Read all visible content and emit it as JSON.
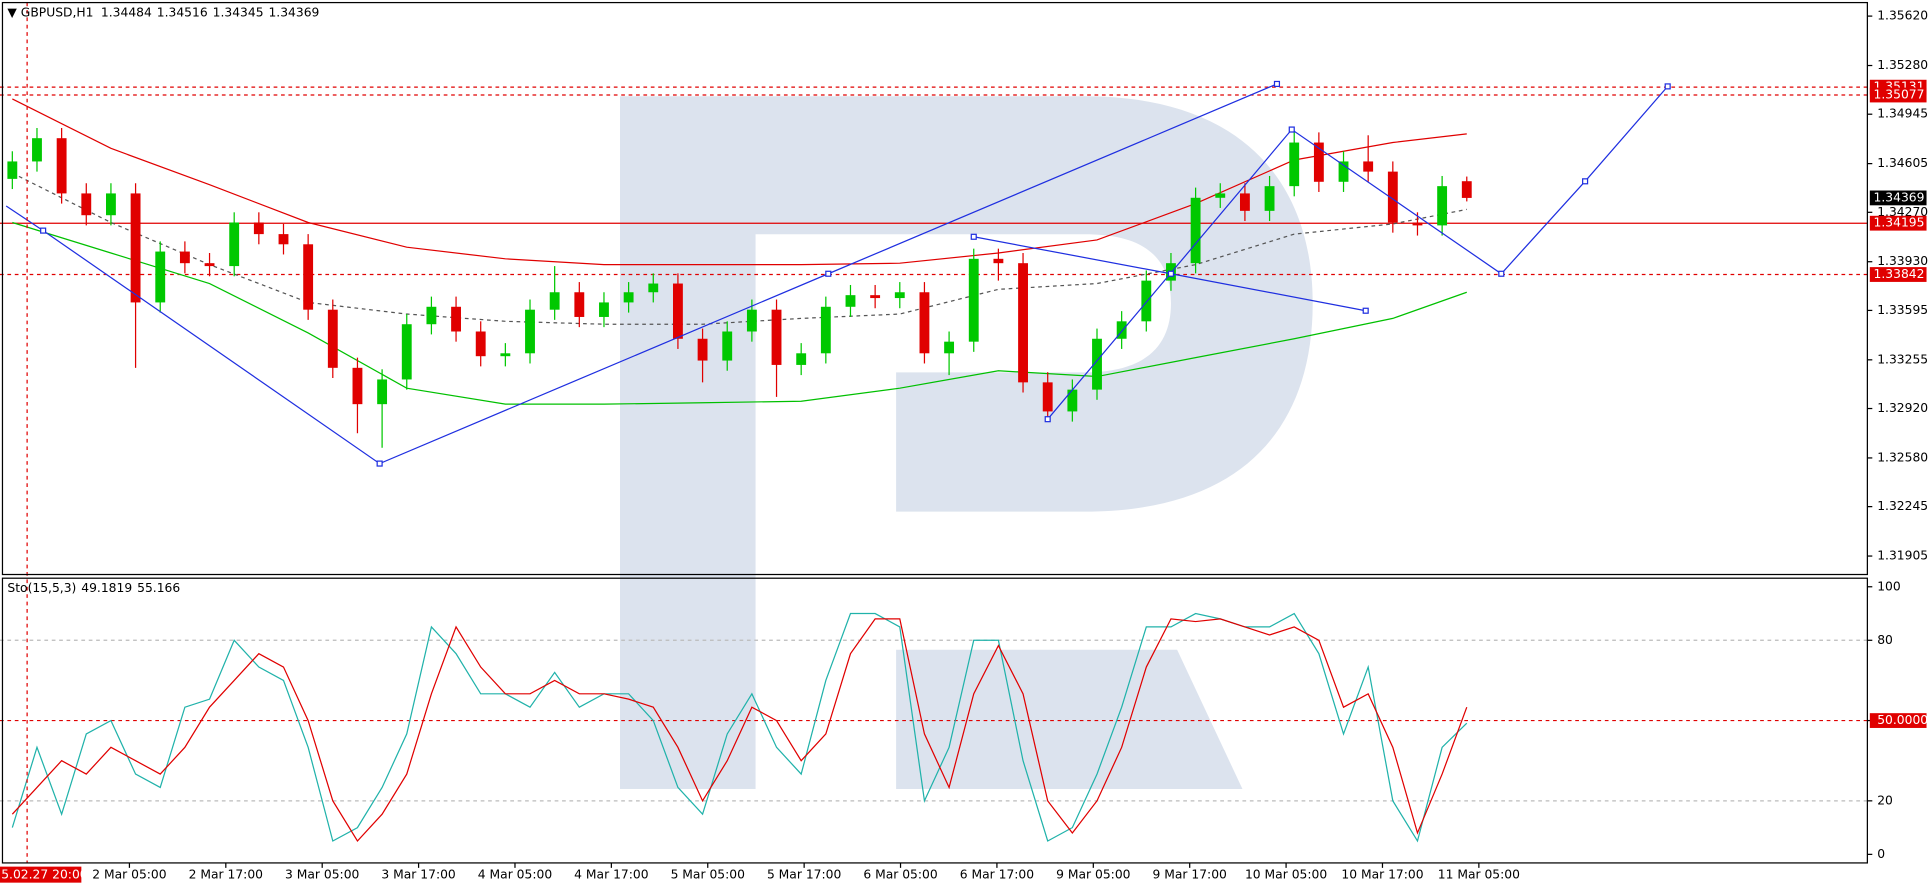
{
  "chart_data": [
    {
      "type": "candlestick",
      "title": "GBPUSD,H1",
      "header_values": [
        1.34484,
        1.34516,
        1.34345,
        1.34369
      ],
      "open": [
        1.345,
        1.3462,
        1.3478,
        1.344,
        1.3425,
        1.344,
        1.3365,
        1.34,
        1.3392,
        1.339,
        1.342,
        1.3412,
        1.3405,
        1.336,
        1.332,
        1.3295,
        1.3312,
        1.335,
        1.3362,
        1.3345,
        1.3328,
        1.333,
        1.336,
        1.3372,
        1.3355,
        1.3365,
        1.3372,
        1.3378,
        1.334,
        1.3325,
        1.3345,
        1.336,
        1.3322,
        1.333,
        1.3362,
        1.337,
        1.3368,
        1.3372,
        1.333,
        1.3338,
        1.3395,
        1.3392,
        1.331,
        1.329,
        1.3305,
        1.334,
        1.3352,
        1.338,
        1.3392,
        1.3437,
        1.344,
        1.3428,
        1.3445,
        1.3475,
        1.3448,
        1.3462,
        1.3455,
        1.342,
        1.3418,
        1.34484
      ],
      "high": [
        1.3469,
        1.3485,
        1.3485,
        1.3447,
        1.3447,
        1.3447,
        1.3407,
        1.3407,
        1.3399,
        1.3427,
        1.3427,
        1.3419,
        1.3412,
        1.3367,
        1.3327,
        1.3319,
        1.3357,
        1.3369,
        1.3369,
        1.3352,
        1.3337,
        1.3367,
        1.339,
        1.3379,
        1.3372,
        1.3379,
        1.3385,
        1.3385,
        1.3347,
        1.3352,
        1.3367,
        1.3367,
        1.3337,
        1.3369,
        1.3377,
        1.3377,
        1.3379,
        1.3379,
        1.3345,
        1.3402,
        1.3402,
        1.3399,
        1.3317,
        1.3312,
        1.3347,
        1.3359,
        1.3387,
        1.3399,
        1.3444,
        1.3447,
        1.3447,
        1.3452,
        1.3482,
        1.3482,
        1.3469,
        1.348,
        1.3462,
        1.3427,
        1.3452,
        1.34516
      ],
      "low": [
        1.3443,
        1.3455,
        1.3433,
        1.3418,
        1.3418,
        1.332,
        1.3358,
        1.3385,
        1.3383,
        1.3383,
        1.3405,
        1.3398,
        1.3353,
        1.3313,
        1.3275,
        1.3265,
        1.3305,
        1.3343,
        1.3338,
        1.3321,
        1.3321,
        1.3323,
        1.3353,
        1.3348,
        1.3348,
        1.3358,
        1.3365,
        1.3333,
        1.331,
        1.3318,
        1.3338,
        1.33,
        1.3315,
        1.3323,
        1.3355,
        1.3361,
        1.3361,
        1.3323,
        1.3315,
        1.3331,
        1.338,
        1.3303,
        1.3285,
        1.3283,
        1.3298,
        1.3333,
        1.3345,
        1.3373,
        1.3385,
        1.343,
        1.3421,
        1.3421,
        1.3438,
        1.3441,
        1.3441,
        1.3448,
        1.3413,
        1.3411,
        1.3411,
        1.34345
      ],
      "close": [
        1.3462,
        1.3478,
        1.344,
        1.3425,
        1.344,
        1.3365,
        1.34,
        1.3392,
        1.339,
        1.342,
        1.3412,
        1.3405,
        1.336,
        1.332,
        1.3295,
        1.3312,
        1.335,
        1.3362,
        1.3345,
        1.3328,
        1.333,
        1.336,
        1.3372,
        1.3355,
        1.3365,
        1.3372,
        1.3378,
        1.334,
        1.3325,
        1.3345,
        1.336,
        1.3322,
        1.333,
        1.3362,
        1.337,
        1.3368,
        1.3372,
        1.333,
        1.3338,
        1.3395,
        1.3392,
        1.331,
        1.329,
        1.3305,
        1.334,
        1.3352,
        1.338,
        1.3392,
        1.3437,
        1.344,
        1.3428,
        1.3445,
        1.3475,
        1.3448,
        1.3462,
        1.3455,
        1.342,
        1.3418,
        1.3445,
        1.34369
      ],
      "up_color": "#00c800",
      "down_color": "#e00000",
      "ylim": [
        1.31778,
        1.35713
      ],
      "yticks": [
        {
          "value": 1.3562,
          "label": "1.35620"
        },
        {
          "value": 1.3528,
          "label": "1.35280"
        },
        1.34945,
        1.34605,
        {
          "value": 1.3427,
          "label": "1.34270"
        },
        {
          "value": 1.3393,
          "label": "1.33930"
        },
        1.33595,
        1.33255,
        {
          "value": 1.3292,
          "label": "1.32920"
        },
        {
          "value": 1.3258,
          "label": "1.32580"
        },
        1.32245,
        1.31905
      ],
      "overlays": [
        {
          "color": "#e00000",
          "style": "solid",
          "x": [
            0,
            4,
            8,
            12,
            16,
            20,
            24,
            28,
            32,
            36,
            40,
            44,
            48,
            52,
            56,
            59
          ],
          "values": [
            1.3505,
            1.3471,
            1.3446,
            1.342,
            1.3403,
            1.3395,
            1.3391,
            1.3391,
            1.3391,
            1.3392,
            1.3399,
            1.3408,
            1.3433,
            1.3463,
            1.3475,
            1.3481
          ]
        },
        {
          "color": "#00c000",
          "style": "solid",
          "x": [
            0,
            4,
            8,
            12,
            16,
            20,
            24,
            28,
            32,
            36,
            40,
            44,
            48,
            52,
            56,
            59
          ],
          "values": [
            1.342,
            1.3399,
            1.3378,
            1.3344,
            1.3306,
            1.3295,
            1.3295,
            1.3296,
            1.3297,
            1.3306,
            1.3318,
            1.3314,
            1.3327,
            1.334,
            1.3354,
            1.3372
          ]
        },
        {
          "color": "#555555",
          "style": "dashed",
          "x": [
            0,
            4,
            8,
            12,
            16,
            20,
            24,
            28,
            32,
            36,
            40,
            44,
            48,
            52,
            56,
            59
          ],
          "values": [
            1.3454,
            1.342,
            1.3391,
            1.3365,
            1.3357,
            1.3352,
            1.335,
            1.335,
            1.3354,
            1.3357,
            1.3374,
            1.3378,
            1.3391,
            1.3412,
            1.3419,
            1.3429
          ]
        }
      ],
      "levels": [
        1.35131,
        1.35077,
        1.34195,
        1.33842
      ],
      "level_styles": [
        "dashed",
        "dashed",
        "solid",
        "dashed"
      ],
      "level_color": "#e00000",
      "current_price": 1.34369,
      "cursor_label": "5.02.27 20:00",
      "time_labels": [
        "2 Mar 05:00",
        "2 Mar 17:00",
        "3 Mar 05:00",
        "3 Mar 17:00",
        "4 Mar 05:00",
        "4 Mar 17:00",
        "5 Mar 05:00",
        "5 Mar 17:00",
        "6 Mar 05:00",
        "6 Mar 17:00",
        "9 Mar 05:00",
        "9 Mar 17:00",
        "10 Mar 05:00",
        "10 Mar 17:00",
        "11 Mar 05:00"
      ]
    },
    {
      "type": "line",
      "title": "Sto(15,5,3)",
      "header_values": [
        49.1819,
        55.166
      ],
      "series": [
        {
          "color": "#20b2aa",
          "values": [
            10,
            40,
            15,
            45,
            50,
            30,
            25,
            55,
            58,
            80,
            70,
            65,
            40,
            5,
            10,
            25,
            45,
            85,
            75,
            60,
            60,
            55,
            68,
            55,
            60,
            60,
            50,
            25,
            15,
            45,
            60,
            40,
            30,
            65,
            90,
            90,
            85,
            20,
            40,
            80,
            80,
            35,
            5,
            10,
            30,
            55,
            85,
            85,
            90,
            88,
            85,
            85,
            90,
            75,
            45,
            70,
            20,
            5,
            40,
            49
          ]
        },
        {
          "color": "#e00000",
          "values": [
            15,
            25,
            35,
            30,
            40,
            35,
            30,
            40,
            55,
            65,
            75,
            70,
            50,
            20,
            5,
            15,
            30,
            60,
            85,
            70,
            60,
            60,
            65,
            60,
            60,
            58,
            55,
            40,
            20,
            35,
            55,
            50,
            35,
            45,
            75,
            88,
            88,
            45,
            25,
            60,
            78,
            60,
            20,
            8,
            20,
            40,
            70,
            88,
            87,
            88,
            85,
            82,
            85,
            80,
            55,
            60,
            40,
            8,
            30,
            55
          ]
        }
      ],
      "ylim": [
        -3.2,
        103.2
      ],
      "yticks": [
        0,
        20,
        {
          "value": 50,
          "label": "50.0000"
        },
        80,
        100
      ],
      "level_color": "#e00000"
    }
  ]
}
